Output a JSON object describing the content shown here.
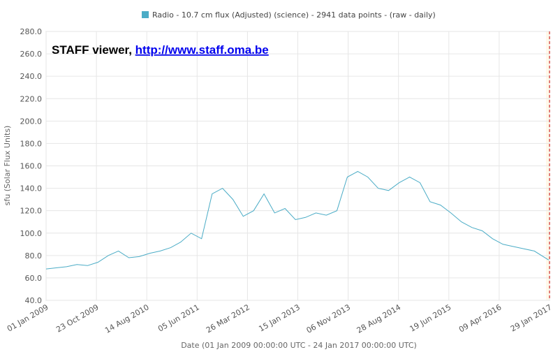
{
  "chart_data": {
    "type": "line",
    "legend": {
      "label": "Radio - 10.7 cm flux (Adjusted) (science) - 2941 data points -  (raw - daily)",
      "placement": "top-center",
      "color": "#4bacc6"
    },
    "watermark": {
      "text": "STAFF viewer, ",
      "link": "http://www.staff.oma.be"
    },
    "ylabel": "sfu (Solar Flux Units)",
    "xlabel": "Date (01 Jan 2009 00:00:00 UTC - 24 Jan 2017 00:00:00 UTC)",
    "ylim": [
      40,
      280
    ],
    "yticks": [
      "40.0",
      "60.0",
      "80.0",
      "100.0",
      "120.0",
      "140.0",
      "160.0",
      "180.0",
      "200.0",
      "220.0",
      "240.0",
      "260.0",
      "280.0"
    ],
    "xlim": [
      "2009-01-01",
      "2017-01-29"
    ],
    "xticks": [
      {
        "date": "2009-01-01",
        "label": "01 Jan 2009"
      },
      {
        "date": "2009-10-23",
        "label": "23 Oct 2009"
      },
      {
        "date": "2010-08-14",
        "label": "14 Aug 2010"
      },
      {
        "date": "2011-06-05",
        "label": "05 Jun 2011"
      },
      {
        "date": "2012-03-26",
        "label": "26 Mar 2012"
      },
      {
        "date": "2013-01-15",
        "label": "15 Jan 2013"
      },
      {
        "date": "2013-11-06",
        "label": "06 Nov 2013"
      },
      {
        "date": "2014-08-28",
        "label": "28 Aug 2014"
      },
      {
        "date": "2015-06-19",
        "label": "19 Jun 2015"
      },
      {
        "date": "2016-04-09",
        "label": "09 Apr 2016"
      },
      {
        "date": "2017-01-29",
        "label": "29 Jan 2017"
      }
    ],
    "grid": true,
    "series": [
      {
        "color": "#4bacc6",
        "x": [
          "2009-01-01",
          "2009-03-01",
          "2009-05-01",
          "2009-07-01",
          "2009-09-01",
          "2009-11-01",
          "2010-01-01",
          "2010-03-01",
          "2010-05-01",
          "2010-07-01",
          "2010-09-01",
          "2010-11-01",
          "2011-01-01",
          "2011-03-01",
          "2011-05-01",
          "2011-07-01",
          "2011-09-01",
          "2011-11-01",
          "2012-01-01",
          "2012-03-01",
          "2012-05-01",
          "2012-07-01",
          "2012-09-01",
          "2012-11-01",
          "2013-01-01",
          "2013-03-01",
          "2013-05-01",
          "2013-07-01",
          "2013-09-01",
          "2013-11-01",
          "2014-01-01",
          "2014-03-01",
          "2014-05-01",
          "2014-07-01",
          "2014-09-01",
          "2014-11-01",
          "2015-01-01",
          "2015-03-01",
          "2015-05-01",
          "2015-07-01",
          "2015-09-01",
          "2015-11-01",
          "2016-01-01",
          "2016-03-01",
          "2016-05-01",
          "2016-07-01",
          "2016-09-01",
          "2016-11-01",
          "2017-01-24"
        ],
        "y": [
          68,
          69,
          70,
          72,
          71,
          74,
          80,
          84,
          78,
          79,
          82,
          84,
          87,
          92,
          100,
          95,
          135,
          140,
          130,
          115,
          120,
          135,
          118,
          122,
          112,
          114,
          118,
          116,
          120,
          150,
          155,
          150,
          140,
          138,
          145,
          150,
          145,
          128,
          125,
          118,
          110,
          105,
          102,
          95,
          90,
          88,
          86,
          84,
          76
        ]
      }
    ]
  }
}
